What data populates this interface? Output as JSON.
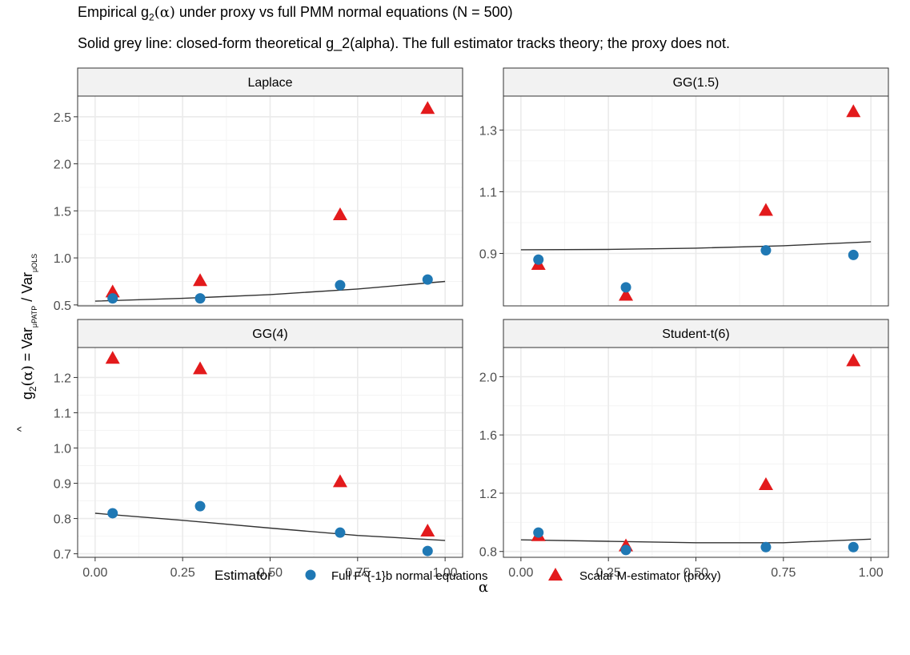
{
  "title_prefix": "Empirical g",
  "title_sub": "2",
  "title_mid": "(α)",
  "title_suffix": " under proxy vs full PMM normal equations (N = 500)",
  "subtitle": "Solid grey line: closed-form theoretical g_2(alpha). The full estimator tracks theory; the proxy does not.",
  "xlabel": "α",
  "ylabel": {
    "hat": "^",
    "g": "g",
    "two": "2",
    "alpha": "(α)",
    "eq": " = Var",
    "sub1": "μPATP",
    "slash": " / Var",
    "sub2": "μOLS"
  },
  "legend": {
    "title": "Estimator",
    "items": [
      {
        "label": "Full F^{-1}b normal equations",
        "shape": "circle",
        "color": "#1f78b4"
      },
      {
        "label": "Scalar M-estimator (proxy)",
        "shape": "triangle",
        "color": "#e31a1c"
      }
    ]
  },
  "colors": {
    "full": "#1f78b4",
    "proxy": "#e31a1c",
    "theory": "#333333",
    "strip": "#f2f2f2",
    "grid": "#ebebeb"
  },
  "chart_data": [
    {
      "type": "scatter",
      "panel": "Laplace",
      "xlim": [
        -0.05,
        1.05
      ],
      "ylim": [
        0.49,
        2.72
      ],
      "xticks": [
        0,
        0.25,
        0.5,
        0.75,
        1
      ],
      "xtick_labels": [
        "0.00",
        "0.25",
        "0.50",
        "0.75",
        "1.00"
      ],
      "yticks": [
        0.5,
        1.0,
        1.5,
        2.0,
        2.5
      ],
      "ytick_labels": [
        "0.5",
        "1.0",
        "1.5",
        "2.0",
        "2.5"
      ],
      "x": [
        0.05,
        0.3,
        0.7,
        0.95
      ],
      "series": [
        {
          "name": "Full F^{-1}b normal equations",
          "values": [
            0.57,
            0.57,
            0.71,
            0.77
          ]
        },
        {
          "name": "Scalar M-estimator (proxy)",
          "values": [
            0.64,
            0.76,
            1.46,
            2.59
          ]
        }
      ],
      "theory": {
        "x": [
          0,
          0.25,
          0.5,
          0.75,
          1.0
        ],
        "y": [
          0.54,
          0.57,
          0.61,
          0.67,
          0.75
        ]
      }
    },
    {
      "type": "scatter",
      "panel": "GG(1.5)",
      "xlim": [
        -0.05,
        1.05
      ],
      "ylim": [
        0.73,
        1.41
      ],
      "xticks": [
        0,
        0.25,
        0.5,
        0.75,
        1
      ],
      "xtick_labels": [
        "0.00",
        "0.25",
        "0.50",
        "0.75",
        "1.00"
      ],
      "yticks": [
        0.9,
        1.1,
        1.3
      ],
      "ytick_labels": [
        "0.9",
        "1.1",
        "1.3"
      ],
      "x": [
        0.05,
        0.3,
        0.7,
        0.95
      ],
      "series": [
        {
          "name": "Full F^{-1}b normal equations",
          "values": [
            0.88,
            0.79,
            0.91,
            0.895
          ]
        },
        {
          "name": "Scalar M-estimator (proxy)",
          "values": [
            0.865,
            0.765,
            1.04,
            1.36
          ]
        }
      ],
      "theory": {
        "x": [
          0,
          0.25,
          0.5,
          0.75,
          1.0
        ],
        "y": [
          0.912,
          0.913,
          0.917,
          0.925,
          0.938
        ]
      }
    },
    {
      "type": "scatter",
      "panel": "GG(4)",
      "xlim": [
        -0.05,
        1.05
      ],
      "ylim": [
        0.69,
        1.285
      ],
      "xticks": [
        0,
        0.25,
        0.5,
        0.75,
        1
      ],
      "xtick_labels": [
        "0.00",
        "0.25",
        "0.50",
        "0.75",
        "1.00"
      ],
      "yticks": [
        0.7,
        0.8,
        0.9,
        1.0,
        1.1,
        1.2
      ],
      "ytick_labels": [
        "0.7",
        "0.8",
        "0.9",
        "1.0",
        "1.1",
        "1.2"
      ],
      "x": [
        0.05,
        0.3,
        0.7,
        0.95
      ],
      "series": [
        {
          "name": "Full F^{-1}b normal equations",
          "values": [
            0.815,
            0.835,
            0.76,
            0.708
          ]
        },
        {
          "name": "Scalar M-estimator (proxy)",
          "values": [
            1.255,
            1.225,
            0.905,
            0.765
          ]
        }
      ],
      "theory": {
        "x": [
          0,
          0.25,
          0.5,
          0.75,
          1.0
        ],
        "y": [
          0.815,
          0.795,
          0.773,
          0.752,
          0.738
        ]
      }
    },
    {
      "type": "scatter",
      "panel": "Student-t(6)",
      "xlim": [
        -0.05,
        1.05
      ],
      "ylim": [
        0.76,
        2.2
      ],
      "xticks": [
        0,
        0.25,
        0.5,
        0.75,
        1
      ],
      "xtick_labels": [
        "0.00",
        "0.25",
        "0.50",
        "0.75",
        "1.00"
      ],
      "yticks": [
        0.8,
        1.2,
        1.6,
        2.0
      ],
      "ytick_labels": [
        "0.8",
        "1.2",
        "1.6",
        "2.0"
      ],
      "x": [
        0.05,
        0.3,
        0.7,
        0.95
      ],
      "series": [
        {
          "name": "Full F^{-1}b normal equations",
          "values": [
            0.93,
            0.81,
            0.83,
            0.83
          ]
        },
        {
          "name": "Scalar M-estimator (proxy)",
          "values": [
            0.91,
            0.84,
            1.26,
            2.11
          ]
        }
      ],
      "theory": {
        "x": [
          0,
          0.25,
          0.5,
          0.75,
          1.0
        ],
        "y": [
          0.88,
          0.87,
          0.86,
          0.86,
          0.885
        ]
      }
    }
  ]
}
